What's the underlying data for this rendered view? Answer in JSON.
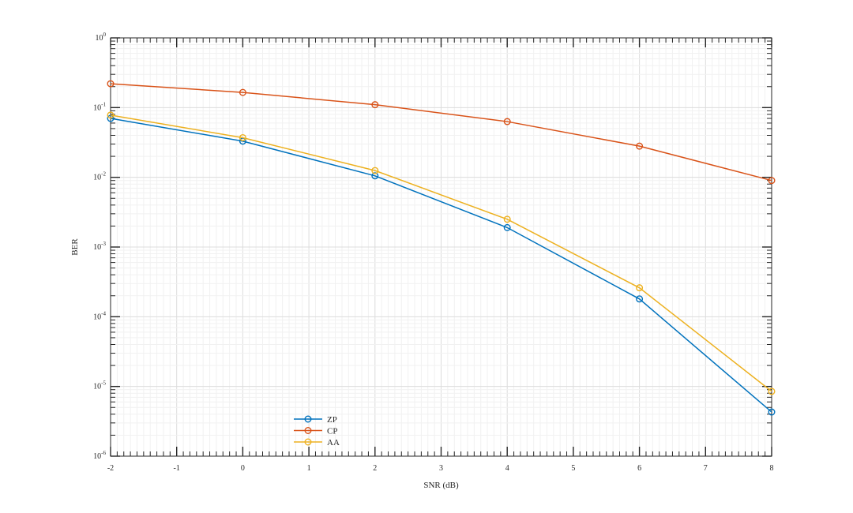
{
  "chart_data": {
    "type": "line",
    "title": "",
    "xlabel": "SNR (dB)",
    "ylabel": "BER",
    "xlim": [
      -2,
      8
    ],
    "ylim": [
      1e-06,
      1
    ],
    "y_scale": "log",
    "grid": true,
    "legend_position": "bottom-left",
    "x_ticks": [
      "-2",
      "-1",
      "0",
      "1",
      "2",
      "3",
      "4",
      "5",
      "6",
      "7",
      "8"
    ],
    "y_ticks": [
      {
        "base": "10",
        "exp": "0"
      },
      {
        "base": "10",
        "exp": "-1"
      },
      {
        "base": "10",
        "exp": "-2"
      },
      {
        "base": "10",
        "exp": "-3"
      },
      {
        "base": "10",
        "exp": "-4"
      },
      {
        "base": "10",
        "exp": "-5"
      },
      {
        "base": "10",
        "exp": "-6"
      }
    ],
    "x": [
      -2,
      0,
      2,
      4,
      6,
      8
    ],
    "series": [
      {
        "name": "ZP",
        "color": "#0072BD",
        "values": [
          0.07,
          0.033,
          0.0105,
          0.0019,
          0.00018,
          4.3e-06
        ]
      },
      {
        "name": "CP",
        "color": "#D95319",
        "values": [
          0.22,
          0.165,
          0.11,
          0.063,
          0.028,
          0.009
        ]
      },
      {
        "name": "AA",
        "color": "#EDB120",
        "values": [
          0.078,
          0.037,
          0.0125,
          0.0025,
          0.00026,
          8.5e-06
        ]
      }
    ]
  }
}
